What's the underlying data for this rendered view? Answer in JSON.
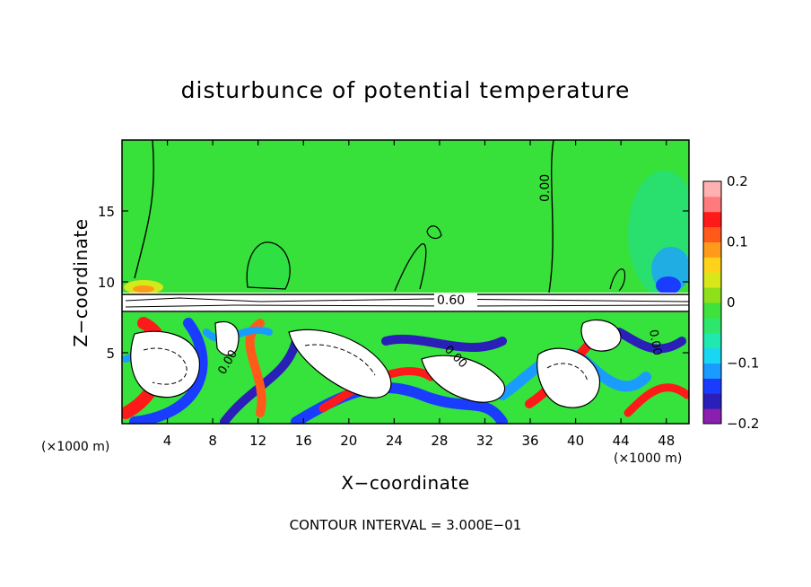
{
  "chart_data": {
    "type": "heatmap",
    "title": "disturbunce of potential temperature",
    "xlabel": "X−coordinate",
    "ylabel": "Z−coordinate",
    "x_unit": "(×1000 m)",
    "xlim": [
      0,
      50
    ],
    "ylim": [
      0,
      20
    ],
    "x_ticks": [
      4,
      8,
      12,
      16,
      20,
      24,
      28,
      32,
      36,
      40,
      44,
      48
    ],
    "y_ticks": [
      5,
      10,
      15
    ],
    "colorbar": {
      "range": [
        -0.2,
        0.2
      ],
      "tick_values": [
        0.2,
        0.1,
        0,
        -0.1,
        -0.2
      ],
      "tick_labels": [
        "0.2",
        "0.1",
        "0",
        "−0.1",
        "−0.2"
      ]
    },
    "contour_labels": [
      "0.00",
      "0.60"
    ],
    "footer": "CONTOUR INTERVAL = 3.000E−01",
    "colors": {
      "upper_background": "#33e23a",
      "colormap": [
        "#8a1fb0",
        "#2a1fb8",
        "#1a3cff",
        "#1a9cff",
        "#19d6f2",
        "#1fe8b0",
        "#2ee66b",
        "#3ee23a",
        "#8ee01a",
        "#d6e81a",
        "#ffd21a",
        "#ff9a1a",
        "#ff5a1a",
        "#ff1a1a",
        "#ff7a7a",
        "#ffb0b0"
      ]
    }
  }
}
